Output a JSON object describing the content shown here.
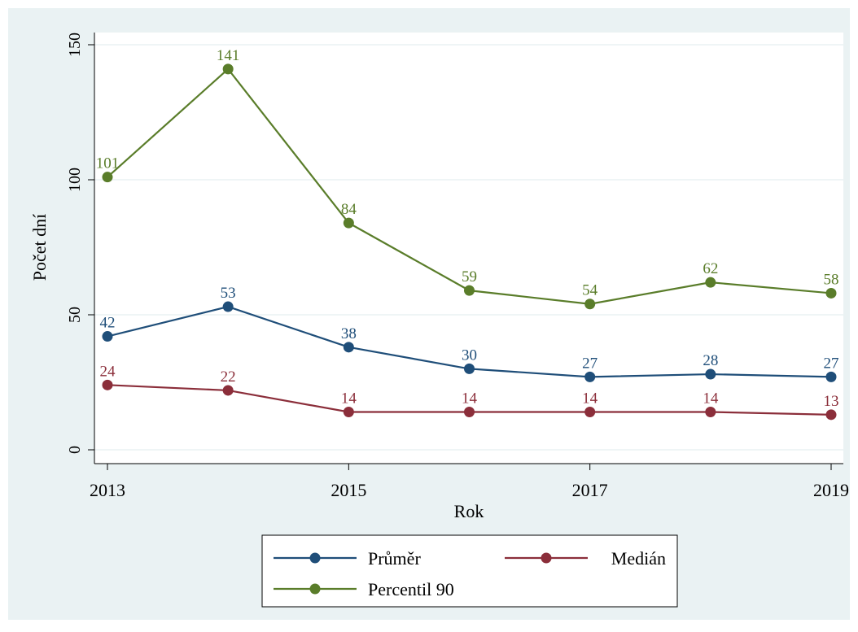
{
  "chart_data": {
    "type": "line",
    "title": "",
    "xlabel": "Rok",
    "ylabel": "Počet dní",
    "x": [
      2013,
      2014,
      2015,
      2016,
      2017,
      2018,
      2019
    ],
    "xticks": [
      "2013",
      "2015",
      "2017",
      "2019"
    ],
    "yticks": [
      "0",
      "50",
      "100",
      "150"
    ],
    "xlim": [
      2013,
      2019
    ],
    "ylim": [
      0,
      150
    ],
    "grid": true,
    "legend_position": "bottom",
    "series": [
      {
        "name": "Průměr",
        "color": "#1f4e79",
        "values": [
          42,
          53,
          38,
          30,
          27,
          28,
          27
        ]
      },
      {
        "name": "Medián",
        "color": "#8b2e3a",
        "values": [
          24,
          22,
          14,
          14,
          14,
          14,
          13
        ]
      },
      {
        "name": "Percentil 90",
        "color": "#5a7d2a",
        "values": [
          101,
          141,
          84,
          59,
          54,
          62,
          58
        ]
      }
    ],
    "colors": {
      "outer_background": "#eaf2f3",
      "plot_background": "#ffffff",
      "grid": "#eaf2f3",
      "axis": "#000000"
    }
  }
}
